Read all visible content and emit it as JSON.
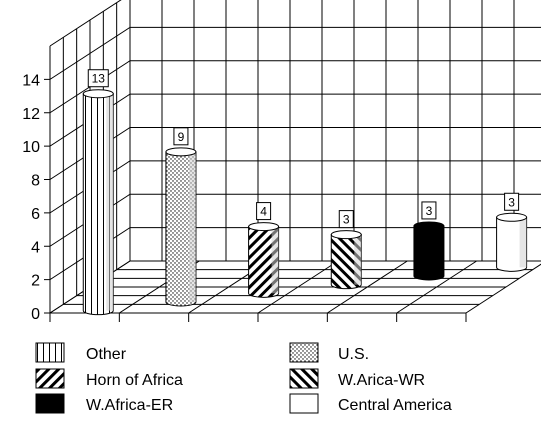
{
  "chart_data": {
    "type": "bar",
    "categories": [
      "Other",
      "U.S.",
      "Horn of Africa",
      "W.Arica-WR",
      "W.Africa-ER",
      "Central America"
    ],
    "values": [
      13,
      9,
      4,
      3,
      3,
      3
    ],
    "y_ticks": [
      "0",
      "2",
      "4",
      "6",
      "8",
      "10",
      "12",
      "14"
    ],
    "ylim": [
      0,
      16
    ],
    "three_d": true,
    "grid": true,
    "legend": {
      "position": "bottom",
      "entries": [
        {
          "label": "Other",
          "pattern": "vertical-stripes"
        },
        {
          "label": "U.S.",
          "pattern": "dots"
        },
        {
          "label": "Horn of Africa",
          "pattern": "diagonal-up"
        },
        {
          "label": "W.Arica-WR",
          "pattern": "diagonal-down"
        },
        {
          "label": "W.Africa-ER",
          "pattern": "solid-black"
        },
        {
          "label": "Central America",
          "pattern": "white"
        }
      ]
    },
    "title": "",
    "xlabel": "",
    "ylabel": ""
  }
}
